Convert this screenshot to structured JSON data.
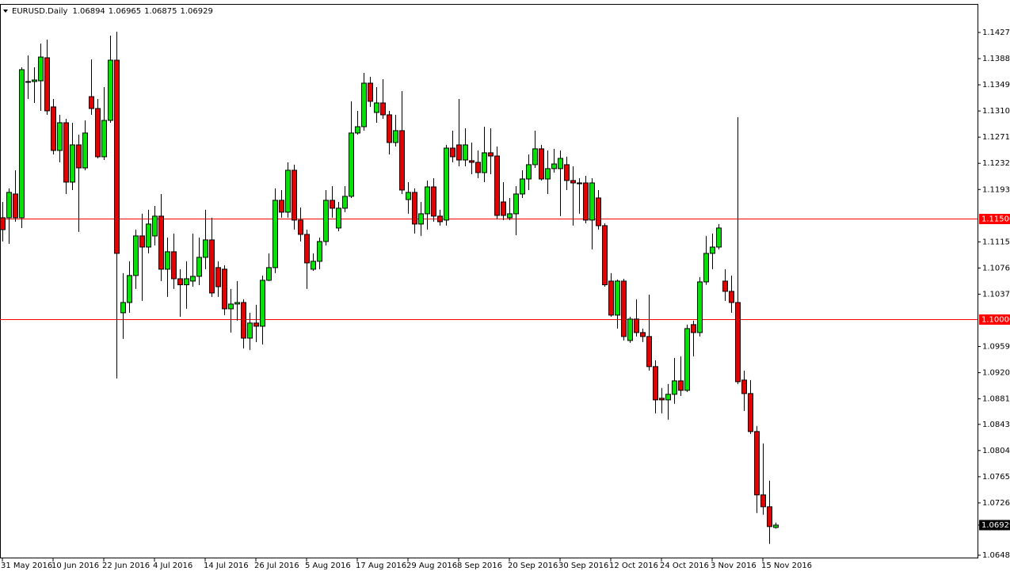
{
  "chart_data": {
    "type": "candlestick",
    "title": "EURUSD.Daily",
    "categories": [
      "31 May 2016",
      null,
      null,
      null,
      null,
      null,
      null,
      null,
      "10 Jun 2016",
      null,
      null,
      null,
      null,
      null,
      null,
      null,
      "22 Jun 2016",
      null,
      null,
      null,
      null,
      null,
      null,
      null,
      "4 Jul 2016",
      null,
      null,
      null,
      null,
      null,
      null,
      null,
      "14 Jul 2016",
      null,
      null,
      null,
      null,
      null,
      null,
      null,
      "26 Jul 2016",
      null,
      null,
      null,
      null,
      null,
      null,
      null,
      "5 Aug 2016",
      null,
      null,
      null,
      null,
      null,
      null,
      null,
      "17 Aug 2016",
      null,
      null,
      null,
      null,
      null,
      null,
      null,
      "29 Aug 2016",
      null,
      null,
      null,
      null,
      null,
      null,
      null,
      "8 Sep 2016",
      null,
      null,
      null,
      null,
      null,
      null,
      null,
      "20 Sep 2016",
      null,
      null,
      null,
      null,
      null,
      null,
      null,
      "30 Sep 2016",
      null,
      null,
      null,
      null,
      null,
      null,
      null,
      "12 Oct 2016",
      null,
      null,
      null,
      null,
      null,
      null,
      null,
      "24 Oct 2016",
      null,
      null,
      null,
      null,
      null,
      null,
      null,
      "3 Nov 2016",
      null,
      null,
      null,
      null,
      null,
      null,
      null,
      "15 Nov 2016",
      null,
      null
    ],
    "open": [
      1.11509,
      1.11509,
      1.11863,
      1.11509,
      1.13539,
      1.13539,
      1.1355,
      1.13893,
      1.13161,
      1.12512,
      1.12925,
      1.1204,
      1.12595,
      1.12252,
      1.13314,
      1.13137,
      1.12418,
      1.1296,
      1.13857,
      1.10093,
      1.10246,
      1.10648,
      1.11238,
      1.11072,
      1.11238,
      1.11533,
      1.10742,
      1.11002,
      1.106,
      1.1051,
      1.10565,
      1.10636,
      1.10919,
      1.11179,
      1.10766,
      1.10742,
      1.10152,
      1.10223,
      1.10246,
      1.09715,
      1.0994,
      1.09892,
      1.10577,
      1.10766,
      1.11769,
      1.11592,
      1.12217,
      1.11474,
      1.11261,
      1.10742,
      1.1086,
      1.11155,
      1.11769,
      1.11356,
      1.11651,
      1.11828,
      1.12772,
      1.12866,
      1.13515,
      1.13078,
      1.1322,
      1.13043,
      1.1263,
      1.12807,
      1.1178,
      1.11887,
      1.11415,
      1.11568,
      1.11969,
      1.11533,
      1.11474,
      1.12547,
      1.12595,
      1.1237,
      1.12359,
      1.12335,
      1.12182,
      1.12477,
      1.12429,
      1.11745,
      1.11509,
      1.11568,
      1.11863,
      1.12087,
      1.123,
      1.12536,
      1.12087,
      1.12241,
      1.12241,
      1.123,
      1.12064,
      1.12028,
      1.12028,
      1.11474,
      1.11804,
      1.11391,
      1.10565,
      1.10058,
      1.10565,
      1.0968,
      1.09999,
      1.09798,
      1.09739,
      1.09291,
      1.08819,
      1.08795,
      1.08878,
      1.09078,
      1.08937,
      1.09916,
      1.09798,
      1.10553,
      1.10978,
      1.11072,
      1.10565,
      1.10412,
      1.10246,
      1.0909,
      1.08889,
      1.08323,
      1.07379,
      1.07202,
      1.06894
    ],
    "high": [
      1.11745,
      1.11946,
      1.12217,
      1.13751,
      1.13928,
      1.13751,
      1.14105,
      1.14164,
      1.13279,
      1.13043,
      1.12984,
      1.12925,
      1.12748,
      1.1296,
      1.13869,
      1.13279,
      1.13456,
      1.14223,
      1.14282,
      1.10683,
      1.1086,
      1.11332,
      1.11568,
      1.11627,
      1.11686,
      1.11863,
      1.11214,
      1.11273,
      1.10742,
      1.1086,
      1.11273,
      1.11214,
      1.11627,
      1.11509,
      1.1086,
      1.10801,
      1.10447,
      1.10565,
      1.10294,
      1.10093,
      1.10211,
      1.10648,
      1.10978,
      1.11946,
      1.11922,
      1.12335,
      1.123,
      1.11662,
      1.11332,
      1.10978,
      1.11214,
      1.11922,
      1.11981,
      1.11745,
      1.11981,
      1.13244,
      1.13102,
      1.13668,
      1.13609,
      1.13456,
      1.13574,
      1.13102,
      1.13043,
      1.13397,
      1.1204,
      1.11946,
      1.11745,
      1.12064,
      1.12099,
      1.11627,
      1.12595,
      1.12807,
      1.13279,
      1.12842,
      1.1263,
      1.12512,
      1.12866,
      1.12842,
      1.12571,
      1.1204,
      1.11804,
      1.11981,
      1.12217,
      1.12453,
      1.12807,
      1.12595,
      1.12512,
      1.12536,
      1.12512,
      1.12418,
      1.12276,
      1.12099,
      1.12134,
      1.12099,
      1.11922,
      1.11426,
      1.10683,
      1.10589,
      1.106,
      1.10034,
      1.10294,
      1.09857,
      1.10364,
      1.09385,
      1.08972,
      1.09031,
      1.0942,
      1.09444,
      1.09916,
      1.09975,
      1.10624,
      1.11238,
      1.11273,
      1.11415,
      1.10742,
      1.10648,
      1.13008,
      1.09232,
      1.0909,
      1.08406,
      1.08146,
      1.07591,
      1.06965
    ],
    "low": [
      1.11155,
      1.1112,
      1.1145,
      1.11356,
      1.13279,
      1.1322,
      1.13102,
      1.13043,
      1.12453,
      1.12335,
      1.11863,
      1.11922,
      1.11297,
      1.12217,
      1.13043,
      1.12394,
      1.1237,
      1.12925,
      1.09114,
      1.09704,
      1.10093,
      1.10447,
      1.1027,
      1.10978,
      1.11096,
      1.10565,
      1.10329,
      1.10447,
      1.10034,
      1.10152,
      1.10482,
      1.10506,
      1.10742,
      1.10329,
      1.10329,
      1.10058,
      1.09798,
      1.09975,
      1.09562,
      1.09538,
      1.09656,
      1.09621,
      1.10565,
      1.10683,
      1.11509,
      1.11509,
      1.11332,
      1.11155,
      1.10447,
      1.10718,
      1.10742,
      1.11096,
      1.11509,
      1.11308,
      1.11592,
      1.11804,
      1.12748,
      1.12807,
      1.13161,
      1.12925,
      1.12984,
      1.12453,
      1.12571,
      1.11863,
      1.11568,
      1.11273,
      1.11238,
      1.11332,
      1.1145,
      1.11391,
      1.11391,
      1.12335,
      1.12276,
      1.12276,
      1.12158,
      1.12099,
      1.1204,
      1.12158,
      1.11485,
      1.11474,
      1.11474,
      1.11249,
      1.11804,
      1.11922,
      1.12252,
      1.12064,
      1.11863,
      1.12182,
      1.11533,
      1.11922,
      1.11391,
      1.11568,
      1.11426,
      1.11037,
      1.11332,
      1.10482,
      1.10034,
      1.09857,
      1.0968,
      1.09645,
      1.09739,
      1.09656,
      1.09232,
      1.08594,
      1.08594,
      1.085,
      1.08736,
      1.08854,
      1.08913,
      1.09444,
      1.09739,
      1.1051,
      1.10742,
      1.11037,
      1.1027,
      1.10093,
      1.09031,
      1.0863,
      1.08288,
      1.07108,
      1.07084,
      1.06648,
      1.06875
    ],
    "close": [
      1.11332,
      1.11887,
      1.11509,
      1.13716,
      1.13527,
      1.13562,
      1.13904,
      1.13102,
      1.12512,
      1.12925,
      1.1204,
      1.12595,
      1.12252,
      1.12772,
      1.13137,
      1.12418,
      1.1296,
      1.13857,
      1.10978,
      1.10246,
      1.10648,
      1.11238,
      1.11072,
      1.11415,
      1.11533,
      1.10742,
      1.11002,
      1.106,
      1.1051,
      1.106,
      1.10636,
      1.10919,
      1.11179,
      1.10388,
      1.10482,
      1.10152,
      1.10223,
      1.10246,
      1.09715,
      1.0994,
      1.09892,
      1.10577,
      1.10766,
      1.11769,
      1.11592,
      1.12217,
      1.11474,
      1.11261,
      1.10836,
      1.1086,
      1.11155,
      1.11769,
      1.11651,
      1.11651,
      1.11828,
      1.12772,
      1.12866,
      1.13515,
      1.13244,
      1.1322,
      1.13043,
      1.1263,
      1.12807,
      1.11922,
      1.11887,
      1.11415,
      1.11568,
      1.11969,
      1.11533,
      1.1145,
      1.12547,
      1.12418,
      1.1237,
      1.12595,
      1.12335,
      1.12182,
      1.12477,
      1.12429,
      1.11544,
      1.11544,
      1.11568,
      1.11863,
      1.12087,
      1.123,
      1.12536,
      1.12087,
      1.12241,
      1.12311,
      1.12394,
      1.12064,
      1.12028,
      1.12016,
      1.11474,
      1.12028,
      1.11391,
      1.1051,
      1.10058,
      1.10565,
      1.09739,
      1.09999,
      1.09798,
      1.09739,
      1.09291,
      1.08795,
      1.08795,
      1.08878,
      1.09078,
      1.08937,
      1.09857,
      1.09798,
      1.10553,
      1.10978,
      1.11072,
      1.11356,
      1.10412,
      1.10246,
      1.09066,
      1.08889,
      1.08323,
      1.07379,
      1.07202,
      1.06907,
      1.06929
    ],
    "up_color": "#00e600",
    "down_color": "#e60000",
    "ylim": [
      1.06433,
      1.14695
    ],
    "yticks": [
      {
        "value": 1.1427,
        "label": "1.14270"
      },
      {
        "value": 1.1388,
        "label": "1.13880"
      },
      {
        "value": 1.1349,
        "label": "1.13490"
      },
      {
        "value": 1.131,
        "label": "1.13100"
      },
      {
        "value": 1.1271,
        "label": "1.12710"
      },
      {
        "value": 1.1232,
        "label": "1.12320"
      },
      {
        "value": 1.1193,
        "label": "1.11930"
      },
      {
        "value": 1.1115,
        "label": "1.11150"
      },
      {
        "value": 1.1076,
        "label": "1.10760"
      },
      {
        "value": 1.1037,
        "label": "1.10370"
      },
      {
        "value": 1.0959,
        "label": "1.09590"
      },
      {
        "value": 1.092,
        "label": "1.09200"
      },
      {
        "value": 1.0881,
        "label": "1.08810"
      },
      {
        "value": 1.0843,
        "label": "1.08430"
      },
      {
        "value": 1.0804,
        "label": "1.08040"
      },
      {
        "value": 1.0765,
        "label": "1.07650"
      },
      {
        "value": 1.0726,
        "label": "1.07260"
      },
      {
        "value": 1.0648,
        "label": "1.06480"
      }
    ],
    "hlines": [
      {
        "value": 1.115,
        "label": "1.11500"
      },
      {
        "value": 1.1,
        "label": "1.10000"
      }
    ],
    "hline_color": "#ff0000"
  }
}
